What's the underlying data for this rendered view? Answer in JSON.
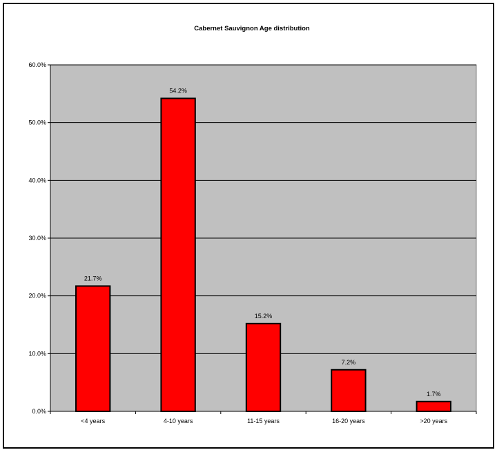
{
  "chart_data": {
    "type": "bar",
    "title": "Cabernet Sauvignon Age distribution",
    "xlabel": "",
    "ylabel": "",
    "categories": [
      "<4 years",
      "4-10 years",
      "11-15 years",
      "16-20 years",
      ">20 years"
    ],
    "values": [
      21.7,
      54.2,
      15.2,
      7.2,
      1.7
    ],
    "data_labels": [
      "21.7%",
      "54.2%",
      "15.2%",
      "7.2%",
      "1.7%"
    ],
    "ylim": [
      0,
      60
    ],
    "yticks": [
      0,
      10,
      20,
      30,
      40,
      50,
      60
    ],
    "ytick_labels": [
      "0.0%",
      "10.0%",
      "20.0%",
      "30.0%",
      "40.0%",
      "50.0%",
      "60.0%"
    ],
    "grid": true,
    "legend": "none",
    "colors": {
      "bar": "#ff0000",
      "bar_edge": "#000000",
      "plot_background": "#c0c0c0",
      "gridline": "#000000"
    }
  }
}
